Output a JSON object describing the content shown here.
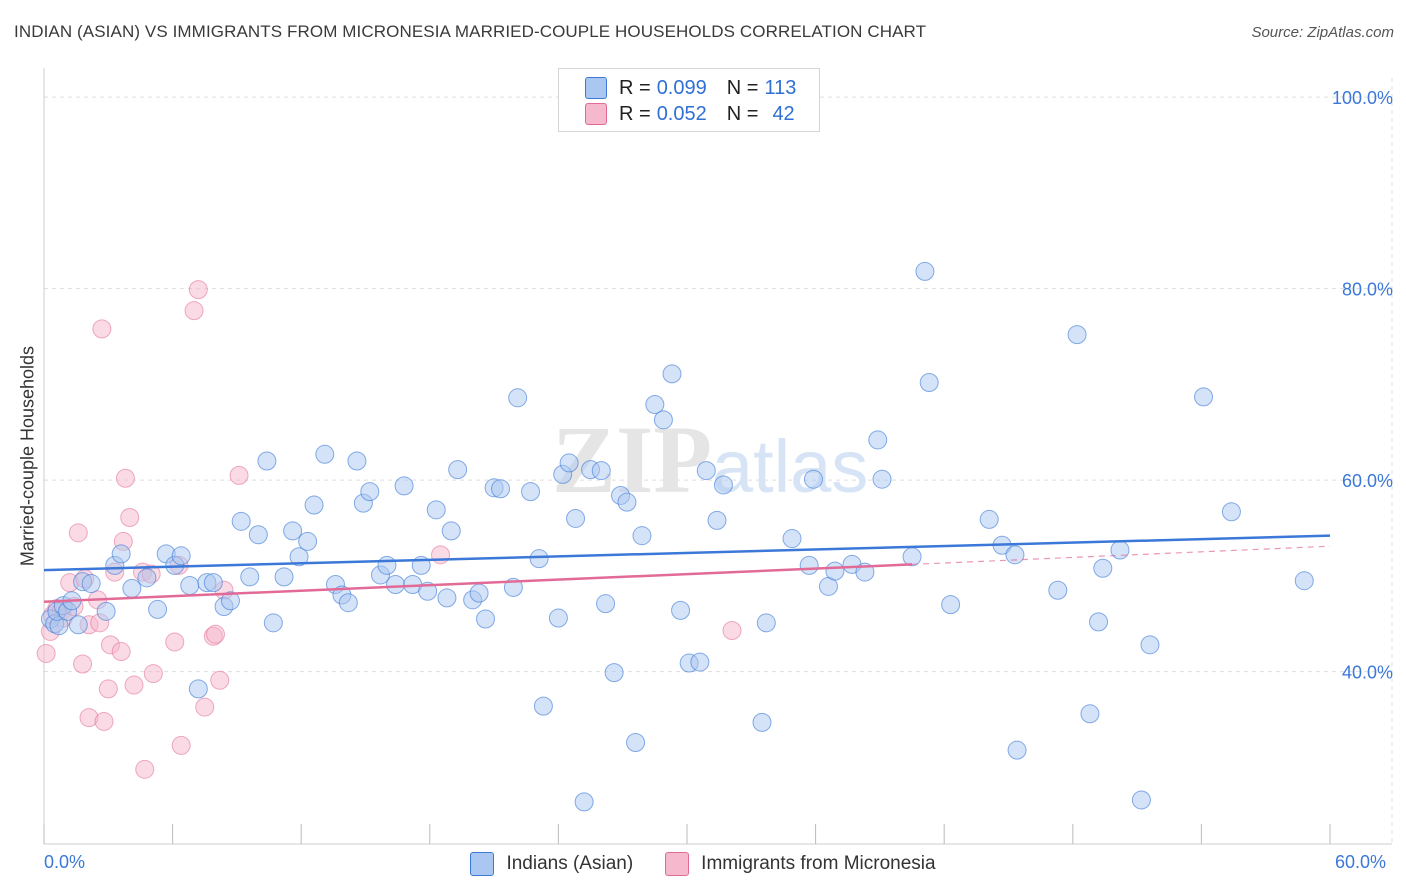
{
  "title": "INDIAN (ASIAN) VS IMMIGRANTS FROM MICRONESIA MARRIED-COUPLE HOUSEHOLDS CORRELATION CHART",
  "source": "Source: ZipAtlas.com",
  "watermark": {
    "zip": "ZIP",
    "atlas": "atlas"
  },
  "legend": {
    "r_label": "R =",
    "n_label": "N =",
    "series1": {
      "r": "0.099",
      "n": "113"
    },
    "series2": {
      "r": "0.052",
      "n": "42"
    }
  },
  "colors": {
    "blue": "#3b78d8",
    "blue_fill": "#a9c7f0",
    "pink": "#e26a96",
    "pink_fill": "#f5b8cc",
    "grid": "#dddddd"
  },
  "chart_data": {
    "type": "scatter",
    "title": "INDIAN (ASIAN) VS IMMIGRANTS FROM MICRONESIA MARRIED-COUPLE HOUSEHOLDS CORRELATION CHART",
    "xlabel": "",
    "ylabel": "Married-couple Households",
    "xlim": [
      0,
      60
    ],
    "ylim": [
      22,
      102
    ],
    "x_tick_labels": [
      "0.0%",
      "60.0%"
    ],
    "y_ticks": [
      40,
      60,
      80,
      100
    ],
    "y_tick_labels": [
      "40.0%",
      "60.0%",
      "80.0%",
      "100.0%"
    ],
    "series": [
      {
        "name": "Indians (Asian)",
        "color": "#3b78d8",
        "r": 0.099,
        "n": 113,
        "trend": {
          "x": [
            0,
            60
          ],
          "y": [
            50.6,
            54.2
          ]
        },
        "points": [
          [
            0.3,
            45.5
          ],
          [
            0.5,
            45
          ],
          [
            0.7,
            44.8
          ],
          [
            0.6,
            46.3
          ],
          [
            0.9,
            46.9
          ],
          [
            1.1,
            46.3
          ],
          [
            1.3,
            47.4
          ],
          [
            1.6,
            44.9
          ],
          [
            1.8,
            49.4
          ],
          [
            2.2,
            49.2
          ],
          [
            2.9,
            46.3
          ],
          [
            3.3,
            51.1
          ],
          [
            3.6,
            52.3
          ],
          [
            4.1,
            48.7
          ],
          [
            4.8,
            49.8
          ],
          [
            5.3,
            46.5
          ],
          [
            5.7,
            52.3
          ],
          [
            6.1,
            51.1
          ],
          [
            6.4,
            52.1
          ],
          [
            6.8,
            49
          ],
          [
            7.2,
            38.2
          ],
          [
            7.6,
            49.3
          ],
          [
            7.9,
            49.3
          ],
          [
            8.4,
            46.8
          ],
          [
            8.7,
            47.4
          ],
          [
            9.2,
            55.7
          ],
          [
            9.6,
            49.9
          ],
          [
            10,
            54.3
          ],
          [
            10.4,
            62
          ],
          [
            10.7,
            45.1
          ],
          [
            11.2,
            49.9
          ],
          [
            11.6,
            54.7
          ],
          [
            11.9,
            52
          ],
          [
            12.3,
            53.6
          ],
          [
            12.6,
            57.4
          ],
          [
            13.1,
            62.7
          ],
          [
            13.6,
            49.1
          ],
          [
            13.9,
            48
          ],
          [
            14.2,
            47.2
          ],
          [
            14.6,
            62
          ],
          [
            14.9,
            57.6
          ],
          [
            15.2,
            58.8
          ],
          [
            15.7,
            50.1
          ],
          [
            16,
            51.1
          ],
          [
            16.4,
            49.1
          ],
          [
            16.8,
            59.4
          ],
          [
            17.2,
            49.1
          ],
          [
            17.6,
            51.1
          ],
          [
            17.9,
            48.4
          ],
          [
            18.3,
            56.9
          ],
          [
            18.8,
            47.7
          ],
          [
            19,
            54.7
          ],
          [
            19.3,
            61.1
          ],
          [
            20,
            47.5
          ],
          [
            20.3,
            48.2
          ],
          [
            20.6,
            45.5
          ],
          [
            21,
            59.2
          ],
          [
            21.3,
            59.1
          ],
          [
            21.9,
            48.8
          ],
          [
            22.1,
            68.6
          ],
          [
            22.7,
            58.8
          ],
          [
            23.1,
            51.8
          ],
          [
            23.3,
            36.4
          ],
          [
            24,
            45.6
          ],
          [
            24.2,
            60.6
          ],
          [
            24.5,
            61.8
          ],
          [
            24.8,
            56
          ],
          [
            25.2,
            26.4
          ],
          [
            25.5,
            61.1
          ],
          [
            26,
            61
          ],
          [
            26.2,
            47.1
          ],
          [
            26.6,
            39.9
          ],
          [
            26.9,
            58.4
          ],
          [
            27.2,
            57.7
          ],
          [
            27.6,
            32.6
          ],
          [
            27.9,
            54.2
          ],
          [
            28.5,
            67.9
          ],
          [
            28.9,
            66.3
          ],
          [
            29.3,
            71.1
          ],
          [
            29.7,
            46.4
          ],
          [
            30.1,
            40.9
          ],
          [
            30.6,
            41
          ],
          [
            30.9,
            61
          ],
          [
            31.4,
            55.8
          ],
          [
            31.7,
            59.5
          ],
          [
            33.5,
            34.7
          ],
          [
            33.7,
            45.1
          ],
          [
            34.9,
            53.9
          ],
          [
            35.7,
            51.1
          ],
          [
            35.9,
            60.1
          ],
          [
            36.6,
            48.9
          ],
          [
            36.9,
            50.5
          ],
          [
            37.7,
            51.2
          ],
          [
            38.3,
            50.4
          ],
          [
            38.9,
            64.2
          ],
          [
            39.1,
            60.1
          ],
          [
            40.5,
            52
          ],
          [
            41.1,
            81.8
          ],
          [
            41.3,
            70.2
          ],
          [
            42.3,
            47
          ],
          [
            44.1,
            55.9
          ],
          [
            44.7,
            53.2
          ],
          [
            45.3,
            52.2
          ],
          [
            45.4,
            31.8
          ],
          [
            47.3,
            48.5
          ],
          [
            48.2,
            75.2
          ],
          [
            48.8,
            35.6
          ],
          [
            49.2,
            45.2
          ],
          [
            49.4,
            50.8
          ],
          [
            50.2,
            52.7
          ],
          [
            51.2,
            26.6
          ],
          [
            51.6,
            42.8
          ],
          [
            54.1,
            68.7
          ],
          [
            55.4,
            56.7
          ],
          [
            58.8,
            49.5
          ]
        ]
      },
      {
        "name": "Immigrants from Micronesia",
        "color": "#e26a96",
        "r": 0.052,
        "n": 42,
        "trend": {
          "x": [
            0,
            40.5
          ],
          "y": [
            47.3,
            51.2
          ]
        },
        "trend_dashed": {
          "x": [
            40.5,
            60
          ],
          "y": [
            51.2,
            53.1
          ]
        },
        "points": [
          [
            0.1,
            41.9
          ],
          [
            0.3,
            44.2
          ],
          [
            0.4,
            45.9
          ],
          [
            0.6,
            46.6
          ],
          [
            0.8,
            46.3
          ],
          [
            0.9,
            45.6
          ],
          [
            1.2,
            49.3
          ],
          [
            1.4,
            46.8
          ],
          [
            1.6,
            54.5
          ],
          [
            1.8,
            40.8
          ],
          [
            1.9,
            49.7
          ],
          [
            2.1,
            44.9
          ],
          [
            2.1,
            35.2
          ],
          [
            2.5,
            47.5
          ],
          [
            2.6,
            45.1
          ],
          [
            2.7,
            75.8
          ],
          [
            2.8,
            34.8
          ],
          [
            3,
            38.2
          ],
          [
            3.1,
            42.8
          ],
          [
            3.3,
            50.4
          ],
          [
            3.6,
            42.1
          ],
          [
            3.7,
            53.6
          ],
          [
            3.8,
            60.2
          ],
          [
            4,
            56.1
          ],
          [
            4.2,
            38.6
          ],
          [
            4.6,
            50.4
          ],
          [
            4.7,
            29.8
          ],
          [
            5,
            50.2
          ],
          [
            5.1,
            39.8
          ],
          [
            6.1,
            43.1
          ],
          [
            6.3,
            51.1
          ],
          [
            6.4,
            32.3
          ],
          [
            7,
            77.7
          ],
          [
            7.2,
            79.9
          ],
          [
            7.5,
            36.3
          ],
          [
            7.9,
            43.7
          ],
          [
            8,
            43.9
          ],
          [
            8.2,
            39.1
          ],
          [
            8.4,
            48.5
          ],
          [
            9.1,
            60.5
          ],
          [
            18.5,
            52.2
          ],
          [
            32.1,
            44.3
          ]
        ]
      }
    ]
  }
}
